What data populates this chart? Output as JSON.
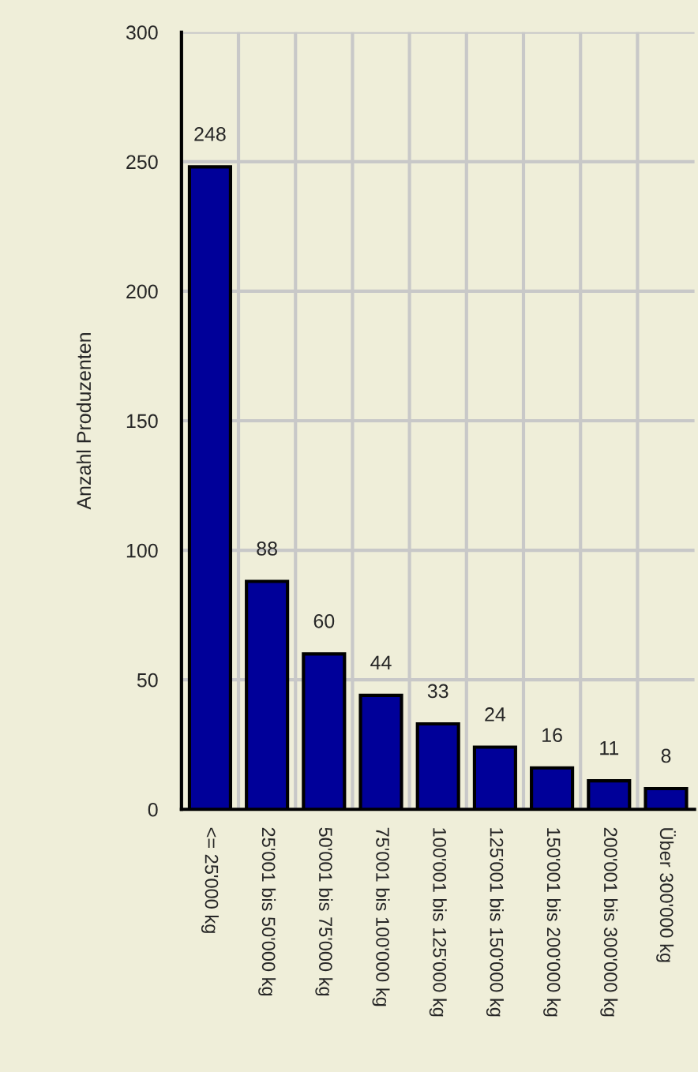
{
  "chart_data": {
    "type": "bar",
    "ylabel": "Anzahl Produzenten",
    "categories": [
      "<= 25'000 kg",
      "25'001 bis 50'000 kg",
      "50'001 bis 75'000 kg",
      "75'001 bis 100'000 kg",
      "100'001 bis 125'000 kg",
      "125'001 bis 150'000 kg",
      "150'001 bis 200'000 kg",
      "200'001 bis 300'000 kg",
      "Über 300'000 kg"
    ],
    "values": [
      248,
      88,
      60,
      44,
      33,
      24,
      16,
      11,
      8
    ],
    "color": "#000099",
    "ylim": [
      0,
      300
    ],
    "yticks": [
      0,
      50,
      100,
      150,
      200,
      250,
      300
    ],
    "grid": true,
    "data_labels": true
  }
}
